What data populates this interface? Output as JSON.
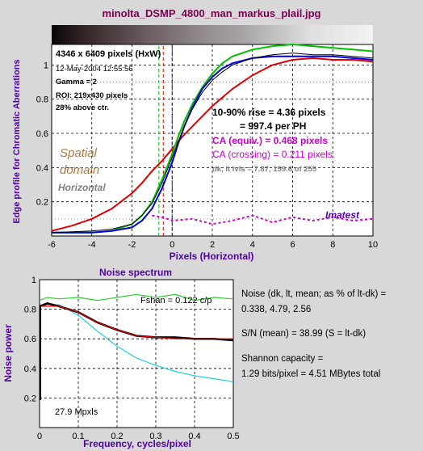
{
  "chart_data": [
    {
      "type": "line",
      "title": "minolta_DSMP_4800_man_markus_plail.jpg",
      "xlabel": "Pixels (Horizontal)",
      "ylabel": "Edge profile for Chromatic Aberrations",
      "xlim": [
        -6,
        10
      ],
      "ylim": [
        0,
        1.12
      ],
      "xticks": [
        -6,
        -4,
        -2,
        0,
        2,
        4,
        6,
        8,
        10
      ],
      "yticks": [
        0.2,
        0.4,
        0.6,
        0.8,
        1
      ],
      "grid": true,
      "annotations": {
        "size": "4346 x 6409 pixels (HxW)",
        "date": "12-May-2004 12:55:56",
        "gamma": "Gamma = 2",
        "roi": "ROI: 219x430 pixels",
        "above": "28% above ctr.",
        "rise1": "10-90% rise = 4.36 pixels",
        "rise2": "= 997.4 per PH",
        "ca_equiv": "CA (equiv.) = 0.468 pixels",
        "ca_crossing": "CA (crossing) = 0.211 pixels",
        "levels": "dk, lt lvls = 7.87, 159.6 of 255",
        "spatial": "Spatial",
        "domain": "domain",
        "orientation": "Horizontal",
        "brand": "Imatest"
      },
      "colors": {
        "red": "#e00000",
        "green": "#00c000",
        "blue": "#0000e0",
        "black": "#000000",
        "ca": "#cc00cc",
        "label": "#b07840",
        "grey": "#707070",
        "brand": "#5000c0"
      },
      "series": [
        {
          "color": "red",
          "x": [
            -6,
            -5,
            -4,
            -3,
            -2,
            -1.5,
            -1,
            -0.5,
            0,
            0.5,
            1,
            2,
            3,
            4,
            5,
            6,
            7,
            8,
            9,
            10
          ],
          "values": [
            0.03,
            0.06,
            0.1,
            0.16,
            0.25,
            0.31,
            0.38,
            0.44,
            0.51,
            0.58,
            0.64,
            0.76,
            0.86,
            0.94,
            1.0,
            1.03,
            1.04,
            1.03,
            1.03,
            1.02
          ]
        },
        {
          "color": "green",
          "x": [
            -6,
            -4,
            -3,
            -2,
            -1.5,
            -1,
            -0.5,
            0,
            0.3,
            0.6,
            1,
            1.5,
            2,
            2.5,
            3,
            4,
            5,
            6,
            7,
            8,
            9,
            10
          ],
          "values": [
            0.02,
            0.02,
            0.03,
            0.07,
            0.12,
            0.2,
            0.33,
            0.48,
            0.58,
            0.67,
            0.77,
            0.87,
            0.95,
            1.01,
            1.05,
            1.09,
            1.11,
            1.12,
            1.11,
            1.1,
            1.09,
            1.08
          ]
        },
        {
          "color": "blue",
          "x": [
            -6,
            -4,
            -3,
            -2,
            -1.5,
            -1,
            -0.5,
            0,
            0.3,
            0.6,
            1,
            1.5,
            2,
            2.5,
            3,
            4,
            5,
            6,
            7,
            8,
            9,
            10
          ],
          "values": [
            0.02,
            0.02,
            0.03,
            0.05,
            0.09,
            0.16,
            0.28,
            0.43,
            0.54,
            0.64,
            0.75,
            0.86,
            0.93,
            0.98,
            1.01,
            1.04,
            1.05,
            1.05,
            1.05,
            1.05,
            1.04,
            1.03
          ]
        },
        {
          "color": "black",
          "x": [
            -6,
            -4,
            -3,
            -2,
            -1.5,
            -1,
            -0.5,
            0,
            0.3,
            0.6,
            1,
            1.5,
            2,
            2.5,
            3,
            4,
            5,
            6,
            7,
            8,
            9,
            10
          ],
          "values": [
            0.02,
            0.03,
            0.04,
            0.07,
            0.12,
            0.19,
            0.31,
            0.46,
            0.55,
            0.64,
            0.74,
            0.84,
            0.91,
            0.96,
            1.0,
            1.04,
            1.06,
            1.07,
            1.06,
            1.06,
            1.05,
            1.04
          ]
        },
        {
          "color": "ca",
          "x": [
            -1,
            -0.5,
            0,
            1,
            2,
            3,
            4,
            5,
            6,
            7,
            8,
            9,
            10
          ],
          "values": [
            0.12,
            0.11,
            0.09,
            0.1,
            0.07,
            0.09,
            0.12,
            0.08,
            0.11,
            0.09,
            0.11,
            0.09,
            0.1
          ]
        }
      ],
      "vlines": [
        -0.66,
        -0.44,
        0.0
      ],
      "hlines": [
        0.1,
        0.9
      ]
    },
    {
      "type": "line",
      "title": "Noise spectrum",
      "xlabel": "Frequency, cycles/pixel",
      "ylabel": "Noise power",
      "xlim": [
        0,
        0.5
      ],
      "ylim": [
        0,
        1
      ],
      "xticks": [
        0,
        0.1,
        0.2,
        0.3,
        0.4,
        0.5
      ],
      "yticks": [
        0.2,
        0.4,
        0.6,
        0.8,
        1
      ],
      "grid": true,
      "annotations": {
        "fshan": "Fshan = 0.122 c/p",
        "mpxls": "27.9 Mpxls"
      },
      "series": [
        {
          "color": "green",
          "x": [
            0,
            0.02,
            0.05,
            0.1,
            0.15,
            0.2,
            0.25,
            0.3,
            0.35,
            0.4,
            0.45,
            0.5
          ],
          "values": [
            0.86,
            0.88,
            0.87,
            0.88,
            0.86,
            0.88,
            0.9,
            0.88,
            0.9,
            0.86,
            0.88,
            0.87
          ]
        },
        {
          "color": "cyan",
          "x": [
            0,
            0.02,
            0.05,
            0.1,
            0.15,
            0.2,
            0.25,
            0.3,
            0.35,
            0.4,
            0.45,
            0.5
          ],
          "values": [
            0.82,
            0.83,
            0.83,
            0.76,
            0.65,
            0.55,
            0.47,
            0.42,
            0.38,
            0.35,
            0.33,
            0.31
          ]
        },
        {
          "color": "black",
          "x": [
            0,
            0.02,
            0.05,
            0.1,
            0.15,
            0.2,
            0.25,
            0.3,
            0.35,
            0.4,
            0.45,
            0.5
          ],
          "values": [
            0.82,
            0.84,
            0.82,
            0.78,
            0.71,
            0.66,
            0.62,
            0.61,
            0.61,
            0.6,
            0.6,
            0.59
          ]
        },
        {
          "color": "red",
          "x": [
            0,
            0.05,
            0.1,
            0.15,
            0.2,
            0.25,
            0.3,
            0.35,
            0.4,
            0.45,
            0.5
          ],
          "values": [
            0.82,
            0.82,
            0.78,
            0.71,
            0.66,
            0.62,
            0.61,
            0.6,
            0.6,
            0.6,
            0.6
          ]
        }
      ]
    }
  ],
  "stats": {
    "noise_label": "Noise (dk, lt, mean; as % of lt-dk) =",
    "noise_values": "0.338,   4.79,   2.56",
    "sn": "S/N (mean) = 38.99   (S = lt-dk)",
    "shannon_label": "Shannon capacity =",
    "shannon_values": "1.29 bits/pixel = 4.51 MBytes total"
  }
}
